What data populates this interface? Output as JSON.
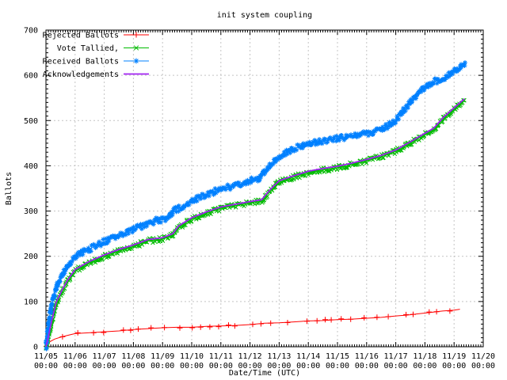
{
  "chart_data": {
    "type": "line",
    "title": "init system coupling",
    "xlabel": "Date/Time (UTC)",
    "ylabel": "Ballots",
    "ylim": [
      0,
      700
    ],
    "y_ticks": [
      0,
      100,
      200,
      300,
      400,
      500,
      600,
      700
    ],
    "x_ticks": [
      {
        "date": "11/05",
        "time": "00:00"
      },
      {
        "date": "11/06",
        "time": "00:00"
      },
      {
        "date": "11/07",
        "time": "00:00"
      },
      {
        "date": "11/08",
        "time": "00:00"
      },
      {
        "date": "11/09",
        "time": "00:00"
      },
      {
        "date": "11/10",
        "time": "00:00"
      },
      {
        "date": "11/11",
        "time": "00:00"
      },
      {
        "date": "11/12",
        "time": "00:00"
      },
      {
        "date": "11/13",
        "time": "00:00"
      },
      {
        "date": "11/14",
        "time": "00:00"
      },
      {
        "date": "11/15",
        "time": "00:00"
      },
      {
        "date": "11/16",
        "time": "00:00"
      },
      {
        "date": "11/17",
        "time": "00:00"
      },
      {
        "date": "11/18",
        "time": "00:00"
      },
      {
        "date": "11/19",
        "time": "00:00"
      },
      {
        "date": "11/20",
        "time": "00:00"
      }
    ],
    "grid": true,
    "legend_position": "top-left",
    "x_unit": "days since 11/05 00:00 UTC",
    "series": [
      {
        "name": "Rejected Ballots",
        "color": "#ff0000",
        "marker": "plus",
        "x": [
          0,
          0.1,
          0.3,
          0.55,
          0.8,
          1.0,
          1.5,
          2.0,
          2.5,
          3.0,
          3.5,
          4.0,
          4.5,
          5.0,
          5.5,
          6.0,
          6.5,
          7.0,
          7.5,
          8.0,
          8.5,
          9.0,
          9.5,
          10.0,
          10.5,
          11.0,
          11.5,
          12.0,
          12.4,
          12.8,
          13.2,
          13.6,
          14.0,
          14.2
        ],
        "y": [
          2,
          10,
          17,
          22,
          26,
          29,
          31,
          33,
          35,
          38,
          40,
          42,
          43,
          43,
          45,
          46,
          47,
          49,
          52,
          53,
          55,
          57,
          58,
          60,
          61,
          63,
          65,
          68,
          70,
          73,
          76,
          79,
          81,
          83
        ]
      },
      {
        "name": "Vote Tallied,",
        "color": "#00bb00",
        "marker": "cross",
        "x": [
          0,
          0.08,
          0.2,
          0.35,
          0.55,
          0.75,
          1.0,
          1.5,
          2.0,
          2.5,
          3.0,
          3.5,
          4.0,
          4.35,
          4.55,
          5.0,
          5.5,
          6.0,
          6.5,
          7.0,
          7.4,
          7.7,
          8.0,
          8.5,
          9.0,
          9.5,
          10.0,
          10.5,
          11.0,
          11.5,
          12.0,
          12.5,
          13.0,
          13.3,
          13.65,
          14.0,
          14.35
        ],
        "y": [
          0,
          18,
          55,
          95,
          122,
          145,
          168,
          186,
          200,
          212,
          222,
          234,
          238,
          247,
          264,
          282,
          295,
          306,
          312,
          318,
          322,
          345,
          364,
          375,
          385,
          391,
          396,
          403,
          411,
          420,
          432,
          450,
          469,
          480,
          505,
          525,
          545
        ]
      },
      {
        "name": "Received Ballots",
        "color": "#0080ff",
        "marker": "asterisk",
        "x": [
          0,
          0.08,
          0.2,
          0.35,
          0.55,
          0.75,
          1.0,
          1.5,
          2.0,
          2.5,
          3.0,
          3.5,
          3.8,
          4.2,
          4.35,
          4.7,
          5.0,
          5.5,
          6.0,
          6.5,
          7.0,
          7.3,
          7.7,
          8.0,
          8.5,
          9.0,
          9.5,
          10.0,
          10.5,
          11.0,
          11.5,
          12.0,
          12.5,
          13.0,
          13.3,
          13.65,
          14.0,
          14.25,
          14.4
        ],
        "y": [
          0,
          45,
          95,
          130,
          158,
          178,
          200,
          216,
          232,
          246,
          259,
          272,
          280,
          282,
          300,
          310,
          323,
          336,
          349,
          356,
          367,
          372,
          402,
          420,
          438,
          448,
          455,
          460,
          466,
          472,
          480,
          500,
          540,
          574,
          585,
          595,
          610,
          620,
          628
        ]
      },
      {
        "name": "Acknowledgements",
        "color": "#a020f0",
        "marker": "none",
        "x": [
          0,
          0.08,
          0.2,
          0.35,
          0.55,
          0.75,
          1.0,
          1.5,
          2.0,
          2.5,
          3.0,
          3.5,
          4.0,
          4.35,
          4.55,
          5.0,
          5.5,
          6.0,
          6.5,
          7.0,
          7.4,
          7.7,
          8.0,
          8.5,
          9.0,
          9.5,
          10.0,
          10.5,
          11.0,
          11.5,
          12.0,
          12.5,
          13.0,
          13.3,
          13.65,
          14.0,
          14.35
        ],
        "y": [
          0,
          21,
          58,
          98,
          125,
          148,
          171,
          189,
          203,
          215,
          225,
          237,
          241,
          250,
          267,
          285,
          298,
          309,
          315,
          321,
          325,
          348,
          367,
          378,
          388,
          394,
          399,
          406,
          414,
          423,
          435,
          453,
          472,
          483,
          508,
          528,
          548
        ]
      }
    ]
  }
}
